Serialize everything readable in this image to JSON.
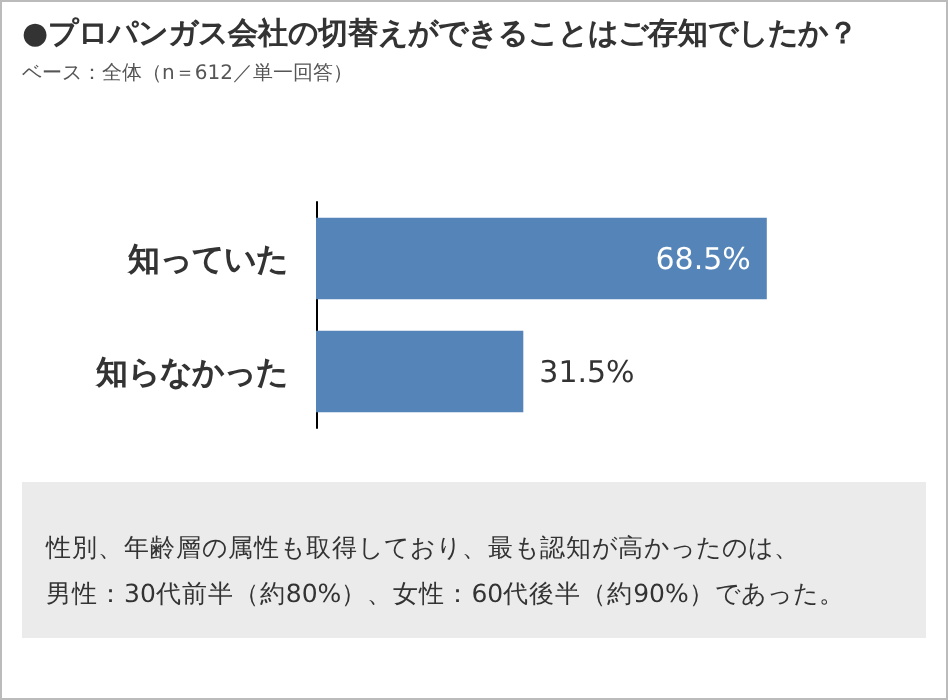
{
  "chart_data": {
    "type": "bar",
    "orientation": "horizontal",
    "title": "●プロパンガス会社の切替えができることはご存知でしたか？",
    "subtitle": "ベース：全体（n＝612／単一回答）",
    "categories": [
      "知っていた",
      "知らなかった"
    ],
    "values": [
      68.5,
      31.5
    ],
    "value_labels": [
      "68.5%",
      "31.5%"
    ],
    "color": "#5585b8",
    "annotations": [
      "性別、年齢層の属性も取得しており、最も認知が高かったのは、",
      "男性：30代前半（約80%）、女性：60代後半（約90%）であった。"
    ]
  }
}
